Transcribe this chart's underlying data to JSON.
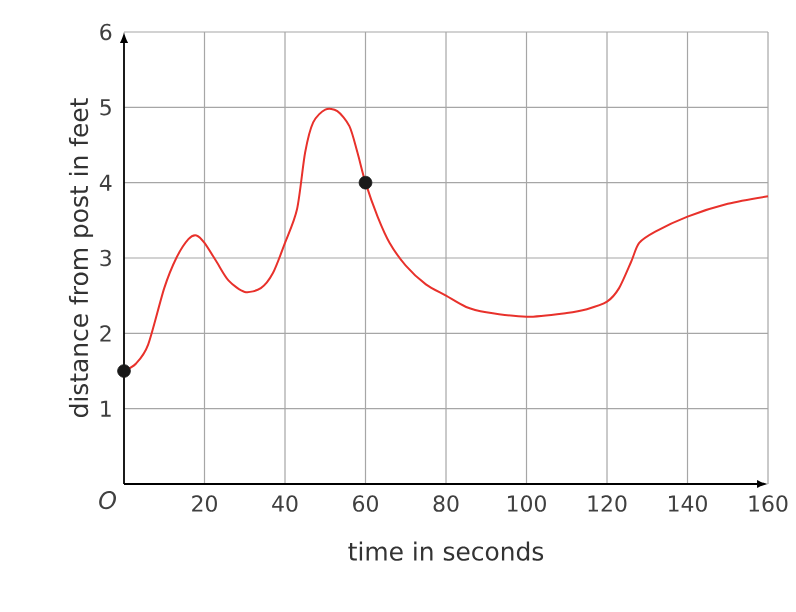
{
  "chart_data": {
    "type": "line",
    "xlabel": "time in seconds",
    "ylabel": "distance from post in feet",
    "xlim": [
      0,
      160
    ],
    "ylim": [
      0,
      6
    ],
    "xticks": [
      20,
      40,
      60,
      80,
      100,
      120,
      140,
      160
    ],
    "yticks": [
      1,
      2,
      3,
      4,
      5,
      6
    ],
    "grid": true,
    "annotations": [
      "O"
    ],
    "series": [
      {
        "color": "#e8312b",
        "marker": "none",
        "x": [
          0,
          3,
          6,
          10,
          13,
          16,
          18,
          20,
          23,
          26,
          30,
          34,
          37,
          40,
          43,
          45,
          47,
          50,
          53,
          56,
          58,
          60,
          63,
          66,
          70,
          75,
          80,
          85,
          90,
          100,
          110,
          115,
          120,
          123,
          126,
          128,
          132,
          140,
          150,
          160
        ],
        "values": [
          1.5,
          1.6,
          1.85,
          2.6,
          3.0,
          3.25,
          3.3,
          3.2,
          2.95,
          2.7,
          2.55,
          2.6,
          2.8,
          3.2,
          3.65,
          4.4,
          4.8,
          4.97,
          4.95,
          4.75,
          4.4,
          4.0,
          3.55,
          3.2,
          2.9,
          2.65,
          2.5,
          2.35,
          2.28,
          2.22,
          2.27,
          2.32,
          2.42,
          2.6,
          2.95,
          3.2,
          3.35,
          3.55,
          3.72,
          3.82
        ]
      },
      {
        "type": "scatter",
        "color": "#1a1a1a",
        "marker": "circle",
        "x": [
          0,
          60
        ],
        "values": [
          1.5,
          4.0
        ]
      }
    ]
  }
}
